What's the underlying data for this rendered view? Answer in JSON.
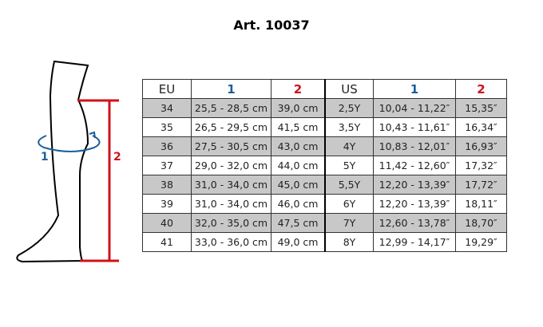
{
  "title": "Art. 10037",
  "diagram": {
    "label_1": "1",
    "label_2": "2",
    "colors": {
      "circumference": "#1f5f99",
      "height": "#d0121b"
    }
  },
  "table": {
    "headers": [
      "EU",
      "1",
      "2",
      "US",
      "1",
      "2"
    ],
    "rows": [
      [
        "34",
        "25,5 - 28,5 cm",
        "39,0 cm",
        "2,5Y",
        "10,04 - 11,22″",
        "15,35″"
      ],
      [
        "35",
        "26,5 - 29,5 cm",
        "41,5 cm",
        "3,5Y",
        "10,43 - 11,61″",
        "16,34″"
      ],
      [
        "36",
        "27,5 - 30,5 cm",
        "43,0 cm",
        "4Y",
        "10,83 - 12,01″",
        "16,93″"
      ],
      [
        "37",
        "29,0 - 32,0 cm",
        "44,0 cm",
        "5Y",
        "11,42 - 12,60″",
        "17,32″"
      ],
      [
        "38",
        "31,0 - 34,0 cm",
        "45,0 cm",
        "5,5Y",
        "12,20 - 13,39″",
        "17,72″"
      ],
      [
        "39",
        "31,0 - 34,0 cm",
        "46,0 cm",
        "6Y",
        "12,20 - 13,39″",
        "18,11″"
      ],
      [
        "40",
        "32,0 - 35,0 cm",
        "47,5 cm",
        "7Y",
        "12,60 - 13,78″",
        "18,70″"
      ],
      [
        "41",
        "33,0 - 36,0 cm",
        "49,0 cm",
        "8Y",
        "12,99 - 14,17″",
        "19,29″"
      ]
    ]
  }
}
